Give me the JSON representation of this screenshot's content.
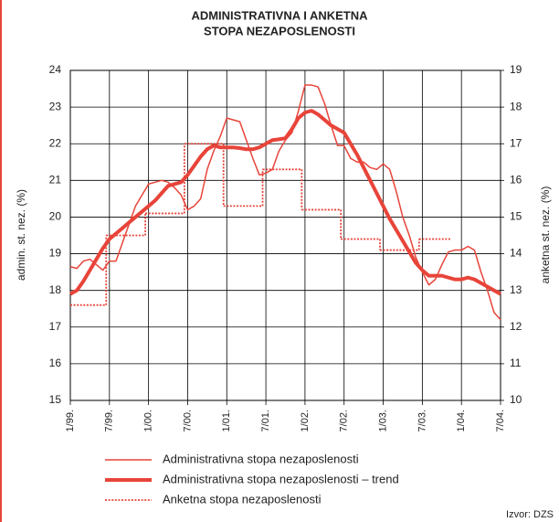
{
  "chart_data": {
    "type": "line",
    "title": [
      "ADMINISTRATIVNA I ANKETNA",
      "STOPA NEZAPOSLENOSTI"
    ],
    "y_label": "admin. st. nez. (%)",
    "y2_label": "anketna st. nez. (%)",
    "source": "Izvor: DZS",
    "grid": true,
    "legend": "bottom",
    "x": [
      0,
      1,
      2,
      3,
      4,
      5,
      6,
      7,
      8,
      9,
      10,
      11,
      12,
      13,
      14,
      15,
      16,
      17,
      18,
      19,
      20,
      21,
      22,
      23,
      24,
      25,
      26,
      27,
      28,
      29,
      30,
      31,
      32,
      33,
      34,
      35,
      36,
      37,
      38,
      39,
      40,
      41,
      42,
      43,
      44,
      45,
      46,
      47,
      48,
      49,
      50,
      51,
      52,
      53,
      54,
      55,
      56,
      57,
      58,
      59,
      60,
      61,
      62,
      63,
      64,
      65,
      66
    ],
    "xlim": [
      0,
      66
    ],
    "xticks": [
      {
        "value": 0,
        "label": "1/99."
      },
      {
        "value": 6,
        "label": "7/99."
      },
      {
        "value": 12,
        "label": "1/00."
      },
      {
        "value": 18,
        "label": "7/00."
      },
      {
        "value": 24,
        "label": "1/01."
      },
      {
        "value": 30,
        "label": "7/01."
      },
      {
        "value": 36,
        "label": "1/02."
      },
      {
        "value": 42,
        "label": "7/02."
      },
      {
        "value": 48,
        "label": "1/03."
      },
      {
        "value": 54,
        "label": "7/03."
      },
      {
        "value": 60,
        "label": "1/04."
      },
      {
        "value": 66,
        "label": "7/04."
      }
    ],
    "ylim": [
      15,
      24
    ],
    "yticks": [
      15,
      16,
      17,
      18,
      19,
      20,
      21,
      22,
      23,
      24
    ],
    "y2lim": [
      10,
      19
    ],
    "y2ticks": [
      10,
      11,
      12,
      13,
      14,
      15,
      16,
      17,
      18,
      19
    ],
    "series": [
      {
        "name": "Administrativna stopa nezaposlenosti",
        "color": "#e8443a",
        "style": "thin",
        "values": [
          18.65,
          18.6,
          18.8,
          18.85,
          18.7,
          18.55,
          18.8,
          18.8,
          19.3,
          19.8,
          20.3,
          20.6,
          20.9,
          20.95,
          21.0,
          20.95,
          20.8,
          20.6,
          20.2,
          20.3,
          20.5,
          21.3,
          21.8,
          22.2,
          22.7,
          22.65,
          22.6,
          22.1,
          21.6,
          21.15,
          21.2,
          21.3,
          21.8,
          22.1,
          22.3,
          22.9,
          23.6,
          23.6,
          23.55,
          23.1,
          22.5,
          21.95,
          21.95,
          21.6,
          21.5,
          21.5,
          21.35,
          21.3,
          21.45,
          21.3,
          20.7,
          20.0,
          19.5,
          18.9,
          18.5,
          18.15,
          18.3,
          18.7,
          19.05,
          19.1,
          19.1,
          19.2,
          19.1,
          18.5,
          18.0,
          17.4,
          17.2
        ]
      },
      {
        "name": "Administrativna stopa nezaposlenosti – trend",
        "color": "#e8443a",
        "style": "thick",
        "values": [
          17.9,
          18.0,
          18.25,
          18.55,
          18.85,
          19.15,
          19.4,
          19.55,
          19.7,
          19.85,
          20.0,
          20.15,
          20.3,
          20.45,
          20.65,
          20.85,
          20.9,
          20.95,
          21.15,
          21.4,
          21.65,
          21.85,
          21.95,
          21.9,
          21.9,
          21.9,
          21.88,
          21.85,
          21.85,
          21.9,
          22.0,
          22.1,
          22.12,
          22.15,
          22.4,
          22.7,
          22.85,
          22.9,
          22.8,
          22.65,
          22.5,
          22.4,
          22.3,
          22.0,
          21.7,
          21.35,
          21.0,
          20.65,
          20.3,
          19.95,
          19.65,
          19.35,
          19.05,
          18.75,
          18.55,
          18.4,
          18.4,
          18.4,
          18.35,
          18.3,
          18.3,
          18.35,
          18.3,
          18.2,
          18.1,
          18.0,
          17.9
        ]
      },
      {
        "name": "Anketna stopa nezaposlenosti",
        "color": "#e8443a",
        "style": "dotted",
        "axis": "y2",
        "step": true,
        "values": [
          12.6,
          12.6,
          12.6,
          12.6,
          12.6,
          12.6,
          14.5,
          14.5,
          14.5,
          14.5,
          14.5,
          14.5,
          15.1,
          15.1,
          15.1,
          15.1,
          15.1,
          15.1,
          17.0,
          17.0,
          17.0,
          17.0,
          17.0,
          17.0,
          15.3,
          15.3,
          15.3,
          15.3,
          15.3,
          15.3,
          16.3,
          16.3,
          16.3,
          16.3,
          16.3,
          16.3,
          15.2,
          15.2,
          15.2,
          15.2,
          15.2,
          15.2,
          14.4,
          14.4,
          14.4,
          14.4,
          14.4,
          14.4,
          14.1,
          14.1,
          14.1,
          14.1,
          14.1,
          14.1,
          14.4,
          14.4,
          14.4,
          14.4,
          14.4,
          null,
          null,
          null,
          null,
          null,
          null,
          null,
          null
        ]
      }
    ]
  }
}
